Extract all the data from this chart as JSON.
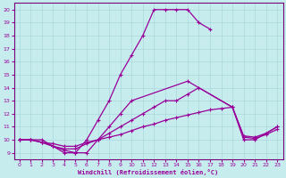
{
  "xlabel": "Windchill (Refroidissement éolien,°C)",
  "xlim": [
    -0.5,
    23.5
  ],
  "ylim": [
    8.5,
    20.5
  ],
  "xticks": [
    0,
    1,
    2,
    3,
    4,
    5,
    6,
    7,
    8,
    9,
    10,
    11,
    12,
    13,
    14,
    15,
    16,
    17,
    18,
    19,
    20,
    21,
    22,
    23
  ],
  "yticks": [
    9,
    10,
    11,
    12,
    13,
    14,
    15,
    16,
    17,
    18,
    19,
    20
  ],
  "background_color": "#c6ecee",
  "grid_color": "#aad8dc",
  "line_color": "#990099",
  "spine_color": "#7a007a",
  "lines": [
    {
      "x": [
        0,
        1,
        2,
        3,
        4,
        5,
        6,
        7,
        8,
        9,
        10,
        11,
        12,
        13,
        14,
        15,
        16,
        17
      ],
      "y": [
        10,
        10,
        10,
        9.5,
        9,
        9,
        10,
        11.5,
        13,
        15,
        16.5,
        18,
        20,
        20,
        20,
        20,
        19,
        18.5
      ]
    },
    {
      "x": [
        0,
        1,
        2,
        3,
        4,
        5,
        6,
        7,
        8,
        9,
        10,
        15,
        19,
        20,
        21,
        22,
        23
      ],
      "y": [
        10,
        10,
        9.8,
        9.5,
        9.2,
        9,
        9,
        10,
        11,
        12,
        13,
        14.5,
        12.5,
        10,
        10,
        10.5,
        11
      ]
    },
    {
      "x": [
        0,
        1,
        2,
        3,
        4,
        5,
        6,
        7,
        8,
        9,
        10,
        11,
        12,
        13,
        14,
        15,
        16,
        19,
        20,
        21,
        22,
        23
      ],
      "y": [
        10,
        10,
        9.8,
        9.5,
        9.3,
        9.3,
        9.7,
        10,
        10.5,
        11,
        11.5,
        12,
        12.5,
        13,
        13,
        13.5,
        14,
        12.5,
        10.3,
        10.2,
        10.5,
        11
      ]
    },
    {
      "x": [
        0,
        1,
        2,
        3,
        4,
        5,
        6,
        7,
        8,
        9,
        10,
        11,
        12,
        13,
        14,
        15,
        16,
        17,
        18,
        19,
        20,
        21,
        22,
        23
      ],
      "y": [
        10,
        10,
        9.8,
        9.7,
        9.5,
        9.5,
        9.8,
        10,
        10.2,
        10.4,
        10.7,
        11,
        11.2,
        11.5,
        11.7,
        11.9,
        12.1,
        12.3,
        12.4,
        12.5,
        10.2,
        10.1,
        10.4,
        10.8
      ]
    }
  ]
}
